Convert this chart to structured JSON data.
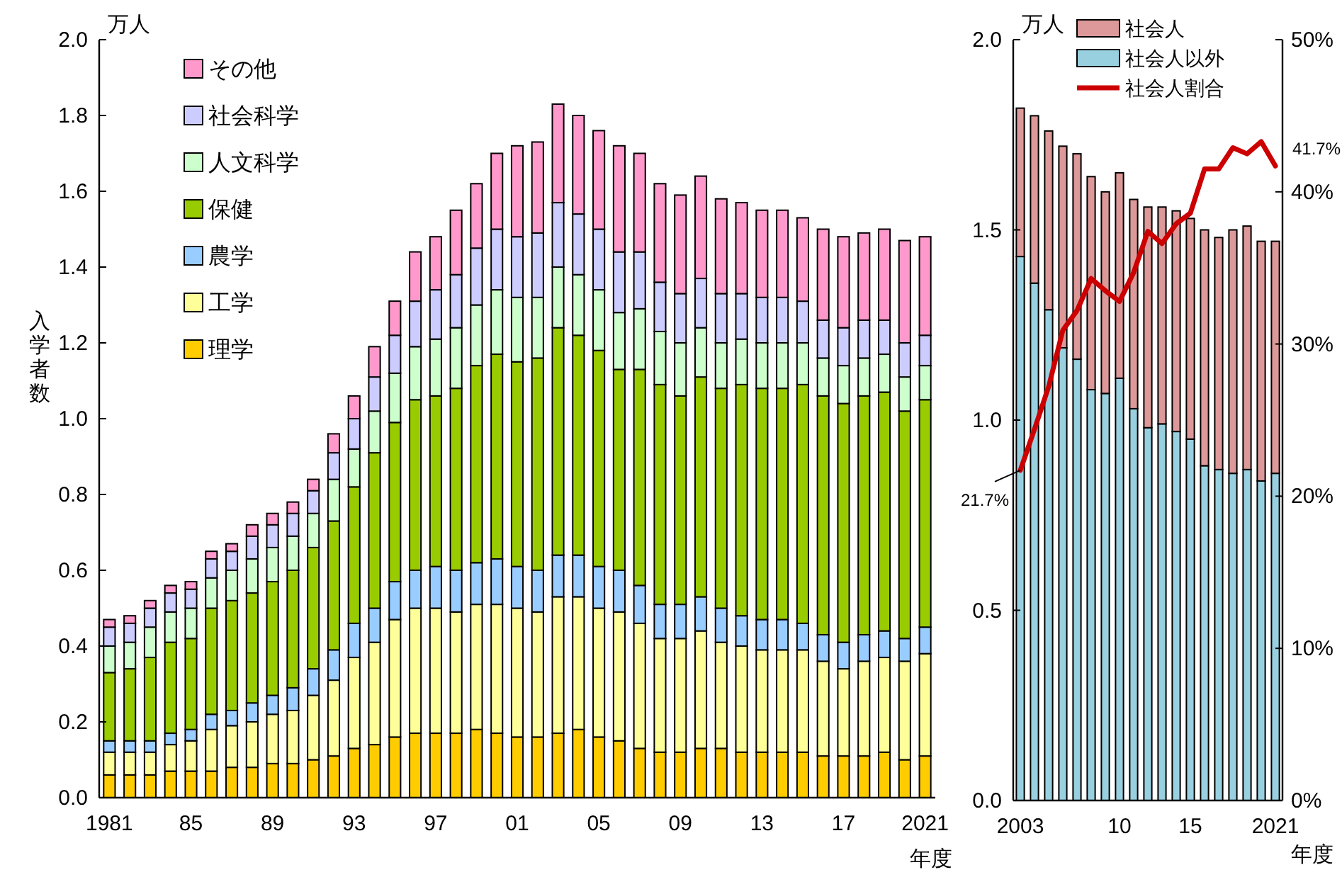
{
  "chart_data": [
    {
      "type": "bar",
      "stacked": true,
      "ylabel": "入学者数",
      "xlabel": "年度",
      "annotations": [
        "万人"
      ],
      "legend": "top left",
      "categories": [
        "1981",
        null,
        null,
        null,
        "85",
        null,
        null,
        null,
        "89",
        null,
        null,
        null,
        "93",
        null,
        null,
        null,
        "97",
        null,
        null,
        null,
        "01",
        null,
        null,
        null,
        "05",
        null,
        null,
        null,
        "09",
        null,
        null,
        null,
        "13",
        null,
        null,
        null,
        "17",
        null,
        null,
        null,
        "2021"
      ],
      "ylim": [
        0,
        2
      ],
      "yticks": [
        {
          "value": 0,
          "label": "0.0"
        },
        {
          "value": 0.2,
          "label": "0.2"
        },
        {
          "value": 0.4,
          "label": "0.4"
        },
        {
          "value": 0.6,
          "label": "0.6"
        },
        {
          "value": 0.8,
          "label": "0.8"
        },
        {
          "value": 1,
          "label": "1.0"
        },
        {
          "value": 1.2,
          "label": "1.2"
        },
        {
          "value": 1.4,
          "label": "1.4"
        },
        {
          "value": 1.6,
          "label": "1.6"
        },
        {
          "value": 1.8,
          "label": "1.8"
        },
        {
          "value": 2,
          "label": "2.0"
        }
      ],
      "series": [
        {
          "name": "理学",
          "color": "#ffcc00",
          "values": [
            0.06,
            0.06,
            0.06,
            0.07,
            0.07,
            0.07,
            0.08,
            0.08,
            0.09,
            0.09,
            0.1,
            0.11,
            0.13,
            0.14,
            0.16,
            0.17,
            0.17,
            0.17,
            0.18,
            0.17,
            0.16,
            0.16,
            0.17,
            0.18,
            0.16,
            0.15,
            0.13,
            0.12,
            0.12,
            0.13,
            0.13,
            0.12,
            0.12,
            0.12,
            0.12,
            0.11,
            0.11,
            0.11,
            0.12,
            0.1,
            0.11
          ]
        },
        {
          "name": "工学",
          "color": "#ffff99",
          "values": [
            0.06,
            0.06,
            0.06,
            0.07,
            0.08,
            0.11,
            0.11,
            0.12,
            0.13,
            0.14,
            0.17,
            0.2,
            0.24,
            0.27,
            0.31,
            0.33,
            0.33,
            0.32,
            0.33,
            0.34,
            0.34,
            0.33,
            0.36,
            0.35,
            0.34,
            0.34,
            0.33,
            0.3,
            0.3,
            0.31,
            0.28,
            0.28,
            0.27,
            0.27,
            0.27,
            0.25,
            0.23,
            0.25,
            0.25,
            0.26,
            0.27
          ]
        },
        {
          "name": "農学",
          "color": "#99ccff",
          "values": [
            0.03,
            0.03,
            0.03,
            0.03,
            0.03,
            0.04,
            0.04,
            0.05,
            0.05,
            0.06,
            0.07,
            0.08,
            0.09,
            0.09,
            0.1,
            0.1,
            0.11,
            0.11,
            0.11,
            0.12,
            0.11,
            0.11,
            0.11,
            0.11,
            0.11,
            0.11,
            0.1,
            0.09,
            0.09,
            0.09,
            0.09,
            0.08,
            0.08,
            0.08,
            0.07,
            0.07,
            0.07,
            0.07,
            0.07,
            0.06,
            0.07
          ]
        },
        {
          "name": "保健",
          "color": "#99cc00",
          "values": [
            0.18,
            0.19,
            0.22,
            0.24,
            0.24,
            0.28,
            0.29,
            0.29,
            0.3,
            0.31,
            0.32,
            0.34,
            0.36,
            0.41,
            0.42,
            0.45,
            0.45,
            0.48,
            0.52,
            0.54,
            0.54,
            0.56,
            0.6,
            0.58,
            0.57,
            0.53,
            0.57,
            0.58,
            0.55,
            0.58,
            0.58,
            0.61,
            0.61,
            0.61,
            0.63,
            0.63,
            0.63,
            0.63,
            0.63,
            0.6,
            0.6
          ]
        },
        {
          "name": "人文科学",
          "color": "#ccffcc",
          "values": [
            0.07,
            0.07,
            0.08,
            0.08,
            0.08,
            0.08,
            0.08,
            0.09,
            0.09,
            0.09,
            0.09,
            0.11,
            0.1,
            0.11,
            0.13,
            0.14,
            0.15,
            0.16,
            0.16,
            0.17,
            0.17,
            0.16,
            0.16,
            0.16,
            0.16,
            0.15,
            0.16,
            0.14,
            0.14,
            0.13,
            0.12,
            0.12,
            0.12,
            0.12,
            0.11,
            0.1,
            0.1,
            0.1,
            0.1,
            0.09,
            0.09
          ]
        },
        {
          "name": "社会科学",
          "color": "#ccccff",
          "values": [
            0.05,
            0.05,
            0.05,
            0.05,
            0.05,
            0.05,
            0.05,
            0.06,
            0.06,
            0.06,
            0.06,
            0.07,
            0.08,
            0.09,
            0.1,
            0.12,
            0.13,
            0.14,
            0.15,
            0.16,
            0.16,
            0.17,
            0.17,
            0.16,
            0.16,
            0.16,
            0.15,
            0.13,
            0.13,
            0.13,
            0.13,
            0.12,
            0.12,
            0.12,
            0.11,
            0.1,
            0.1,
            0.1,
            0.09,
            0.09,
            0.08
          ]
        },
        {
          "name": "その他",
          "color": "#ff99cc",
          "values": [
            0.02,
            0.02,
            0.02,
            0.02,
            0.02,
            0.02,
            0.02,
            0.03,
            0.03,
            0.03,
            0.03,
            0.05,
            0.06,
            0.08,
            0.09,
            0.13,
            0.14,
            0.17,
            0.17,
            0.2,
            0.24,
            0.24,
            0.26,
            0.26,
            0.26,
            0.28,
            0.26,
            0.26,
            0.26,
            0.27,
            0.25,
            0.24,
            0.23,
            0.23,
            0.22,
            0.24,
            0.24,
            0.23,
            0.24,
            0.27,
            0.26
          ]
        }
      ]
    },
    {
      "type": "bar",
      "stacked": true,
      "xlabel": "年度",
      "annotations": [
        "万人"
      ],
      "legend": "top right",
      "categories": [
        "2003",
        null,
        null,
        null,
        null,
        null,
        null,
        "10",
        null,
        null,
        null,
        null,
        "15",
        null,
        null,
        null,
        null,
        null,
        "2021"
      ],
      "ylim": [
        0,
        2
      ],
      "yticks": [
        {
          "value": 0,
          "label": "0.0"
        },
        {
          "value": 0.5,
          "label": "0.5"
        },
        {
          "value": 1,
          "label": "1.0"
        },
        {
          "value": 1.5,
          "label": "1.5"
        },
        {
          "value": 2,
          "label": "2.0"
        }
      ],
      "y2lim": [
        0,
        50
      ],
      "y2ticks": [
        {
          "value": 0,
          "label": "0%"
        },
        {
          "value": 10,
          "label": "10%"
        },
        {
          "value": 20,
          "label": "20%"
        },
        {
          "value": 30,
          "label": "30%"
        },
        {
          "value": 40,
          "label": "40%"
        },
        {
          "value": 50,
          "label": "50%"
        }
      ],
      "series": [
        {
          "name": "社会人以外",
          "color": "#99d0e0",
          "values": [
            1.43,
            1.36,
            1.29,
            1.19,
            1.16,
            1.08,
            1.07,
            1.11,
            1.03,
            0.98,
            0.99,
            0.97,
            0.95,
            0.88,
            0.87,
            0.86,
            0.87,
            0.84,
            0.86
          ]
        },
        {
          "name": "社会人",
          "color": "#dd9999",
          "values": [
            0.39,
            0.44,
            0.47,
            0.53,
            0.54,
            0.56,
            0.53,
            0.54,
            0.55,
            0.58,
            0.57,
            0.58,
            0.58,
            0.62,
            0.61,
            0.64,
            0.64,
            0.63,
            0.61
          ]
        },
        {
          "name": "社会人割合",
          "type": "line",
          "axis": "y2",
          "color": "#cc0000",
          "values": [
            21.7,
            24.4,
            27.2,
            30.9,
            32.2,
            34.3,
            33.5,
            32.8,
            34.7,
            37.4,
            36.6,
            37.9,
            38.6,
            41.5,
            41.5,
            42.9,
            42.5,
            43.3,
            41.7
          ],
          "value_labels": [
            "21.7%",
            null,
            null,
            null,
            null,
            null,
            null,
            null,
            null,
            null,
            null,
            null,
            null,
            null,
            null,
            null,
            null,
            null,
            "41.7%"
          ]
        }
      ]
    }
  ]
}
